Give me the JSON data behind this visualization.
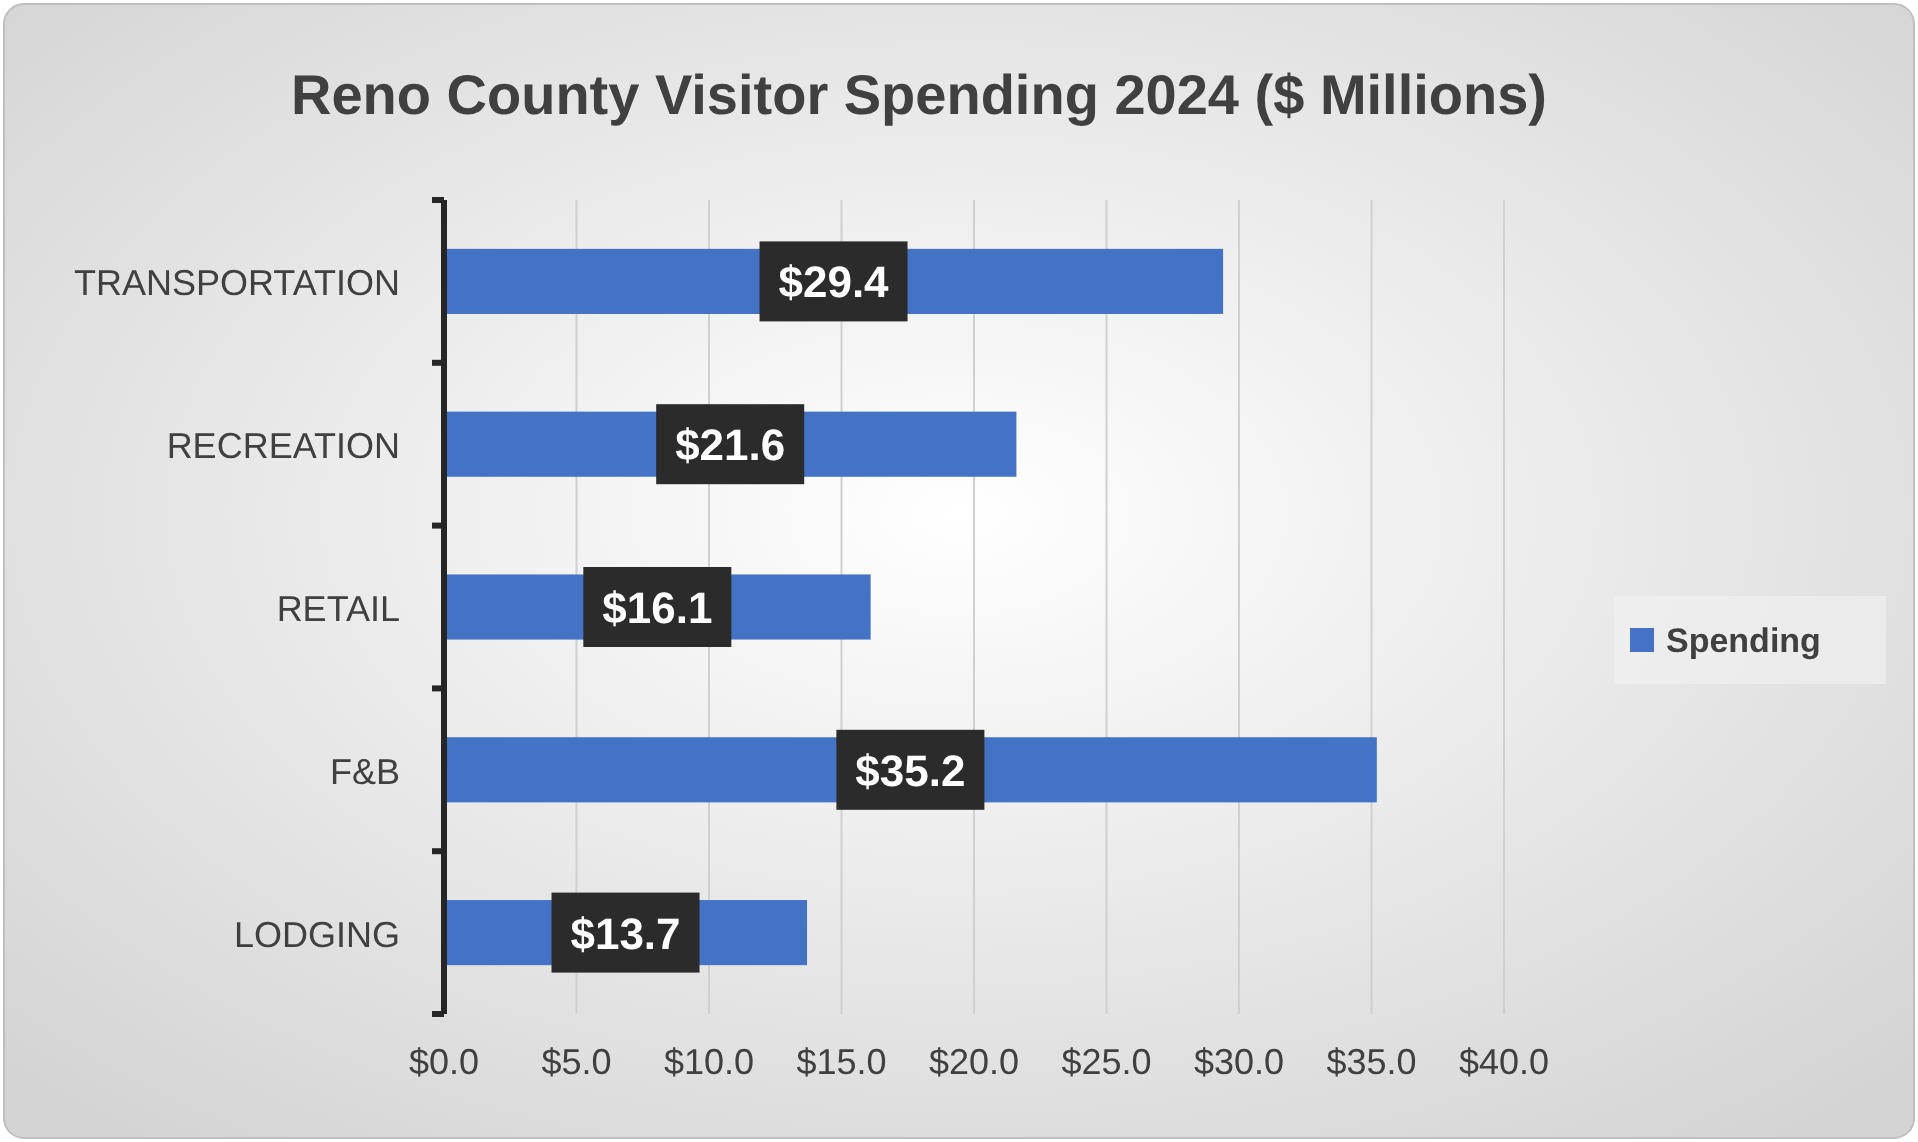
{
  "chart_data": {
    "type": "bar",
    "orientation": "horizontal",
    "title": "Reno County Visitor Spending 2024 ($ Millions)",
    "categories": [
      "TRANSPORTATION",
      "RECREATION",
      "RETAIL",
      "F&B",
      "LODGING"
    ],
    "series": [
      {
        "name": "Spending",
        "color": "#4472c4",
        "values": [
          29.4,
          21.6,
          16.1,
          35.2,
          13.7
        ],
        "value_labels": [
          "$29.4",
          "$21.6",
          "$16.1",
          "$35.2",
          "$13.7"
        ]
      }
    ],
    "xlim": [
      0,
      40
    ],
    "xticks": [
      {
        "value": 0,
        "label": "$0.0"
      },
      {
        "value": 5,
        "label": "$5.0"
      },
      {
        "value": 10,
        "label": "$10.0"
      },
      {
        "value": 15,
        "label": "$15.0"
      },
      {
        "value": 20,
        "label": "$20.0"
      },
      {
        "value": 25,
        "label": "$25.0"
      },
      {
        "value": 30,
        "label": "$30.0"
      },
      {
        "value": 35,
        "label": "$35.0"
      },
      {
        "value": 40,
        "label": "$40.0"
      }
    ],
    "grid": "x",
    "legend": "right"
  }
}
